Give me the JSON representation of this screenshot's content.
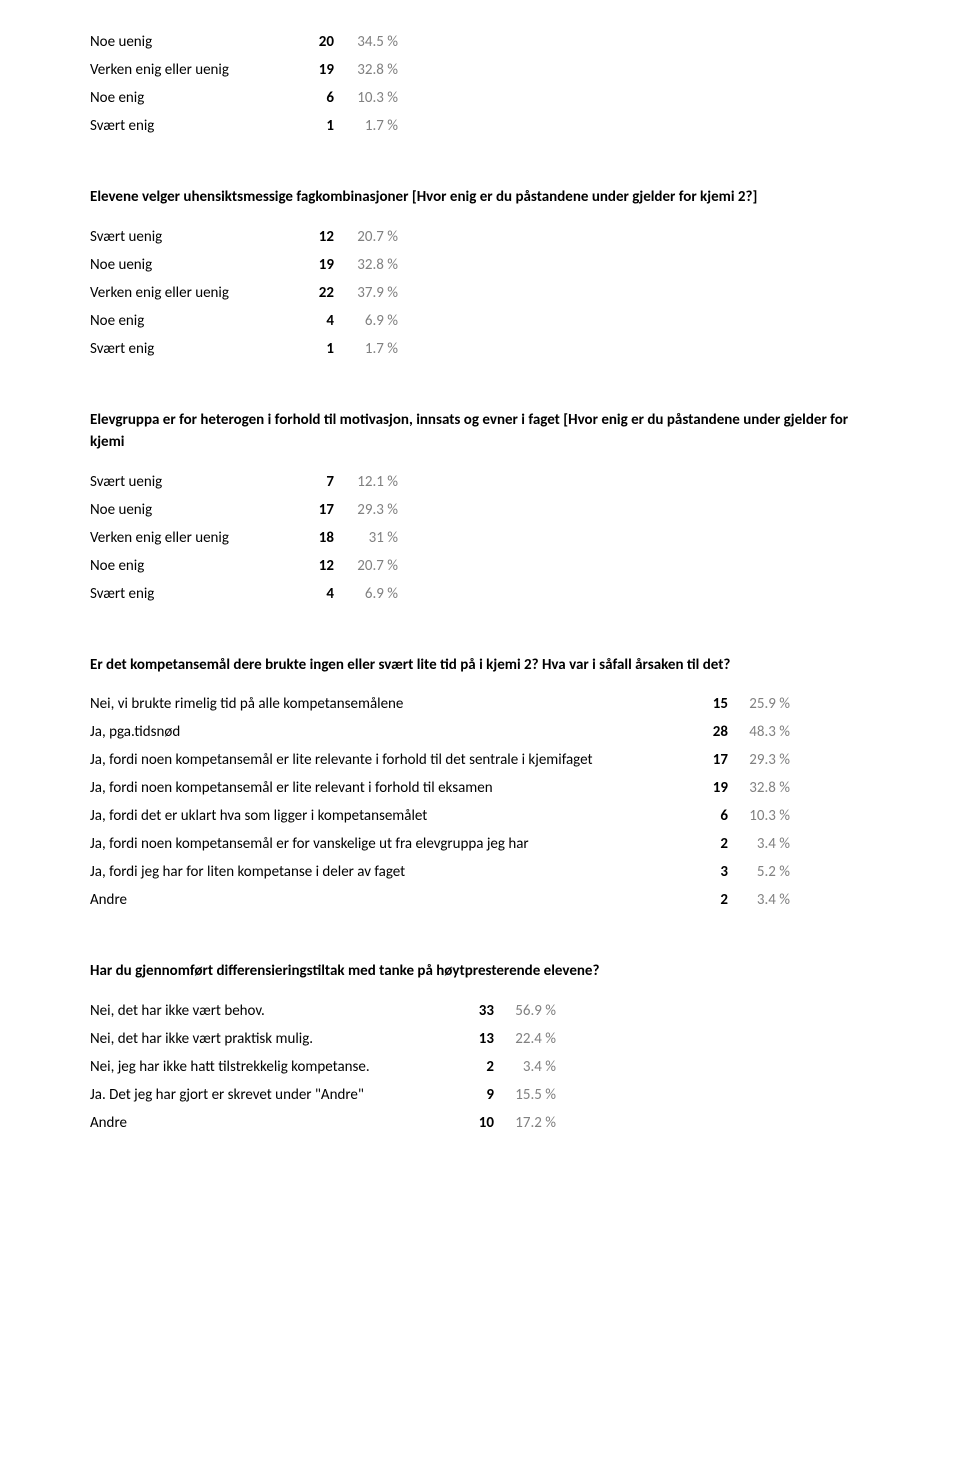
{
  "colors": {
    "text": "#000000",
    "muted": "#808080",
    "background": "#ffffff"
  },
  "typography": {
    "font_family": "Calibri",
    "body_size_pt": 11,
    "title_weight": "bold"
  },
  "sections": [
    {
      "id": "q1",
      "title": null,
      "table_class": "likert",
      "rows": [
        {
          "label": "Noe uenig",
          "count": "20",
          "pct": "34.5 %"
        },
        {
          "label": "Verken enig eller uenig",
          "count": "19",
          "pct": "32.8 %"
        },
        {
          "label": "Noe enig",
          "count": "6",
          "pct": "10.3 %"
        },
        {
          "label": "Svært enig",
          "count": "1",
          "pct": "1.7 %"
        }
      ]
    },
    {
      "id": "q2",
      "title": "Elevene velger uhensiktsmessige fagkombinasjoner [Hvor enig er du påstandene under gjelder for kjemi 2?]",
      "table_class": "likert",
      "rows": [
        {
          "label": "Svært uenig",
          "count": "12",
          "pct": "20.7 %"
        },
        {
          "label": "Noe uenig",
          "count": "19",
          "pct": "32.8 %"
        },
        {
          "label": "Verken enig eller uenig",
          "count": "22",
          "pct": "37.9 %"
        },
        {
          "label": "Noe enig",
          "count": "4",
          "pct": "6.9 %"
        },
        {
          "label": "Svært enig",
          "count": "1",
          "pct": "1.7 %"
        }
      ]
    },
    {
      "id": "q3",
      "title": "Elevgruppa er for heterogen i forhold til motivasjon, innsats og evner i faget [Hvor enig er du påstandene under gjelder for kjemi",
      "table_class": "likert",
      "rows": [
        {
          "label": "Svært uenig",
          "count": "7",
          "pct": "12.1 %"
        },
        {
          "label": "Noe uenig",
          "count": "17",
          "pct": "29.3 %"
        },
        {
          "label": "Verken enig eller uenig",
          "count": "18",
          "pct": "31 %"
        },
        {
          "label": "Noe enig",
          "count": "12",
          "pct": "20.7 %"
        },
        {
          "label": "Svært enig",
          "count": "4",
          "pct": "6.9 %"
        }
      ]
    },
    {
      "id": "q4",
      "title": "Er det kompetansemål dere brukte ingen eller svært lite tid på i kjemi 2? Hva var i såfall årsaken til det?",
      "table_class": "wide",
      "rows": [
        {
          "label": "Nei, vi brukte rimelig tid på alle kompetansemålene",
          "count": "15",
          "pct": "25.9 %"
        },
        {
          "label": "Ja, pga.tidsnød",
          "count": "28",
          "pct": "48.3 %"
        },
        {
          "label": "Ja, fordi noen kompetansemål er lite relevante i forhold til det sentrale i kjemifaget",
          "count": "17",
          "pct": "29.3 %"
        },
        {
          "label": "Ja, fordi noen kompetansemål er lite relevant i forhold til eksamen",
          "count": "19",
          "pct": "32.8 %"
        },
        {
          "label": "Ja, fordi det er uklart hva som ligger i kompetansemålet",
          "count": "6",
          "pct": "10.3 %"
        },
        {
          "label": "Ja, fordi noen kompetansemål er for vanskelige ut fra elevgruppa jeg har",
          "count": "2",
          "pct": "3.4 %"
        },
        {
          "label": "Ja, fordi jeg har for liten kompetanse i deler av faget",
          "count": "3",
          "pct": "5.2 %"
        },
        {
          "label": "Andre",
          "count": "2",
          "pct": "3.4 %"
        }
      ]
    },
    {
      "id": "q5",
      "title": "Har du gjennomført differensieringstiltak med tanke på høytpresterende elevene?",
      "table_class": "med",
      "rows": [
        {
          "label": "Nei, det har ikke vært behov.",
          "count": "33",
          "pct": "56.9 %"
        },
        {
          "label": "Nei, det har ikke vært praktisk mulig.",
          "count": "13",
          "pct": "22.4 %"
        },
        {
          "label": "Nei, jeg har ikke hatt tilstrekkelig kompetanse.",
          "count": "2",
          "pct": "3.4 %"
        },
        {
          "label": "Ja. Det jeg har gjort er skrevet under \"Andre\"",
          "count": "9",
          "pct": "15.5 %"
        },
        {
          "label": "Andre",
          "count": "10",
          "pct": "17.2 %"
        }
      ]
    }
  ]
}
